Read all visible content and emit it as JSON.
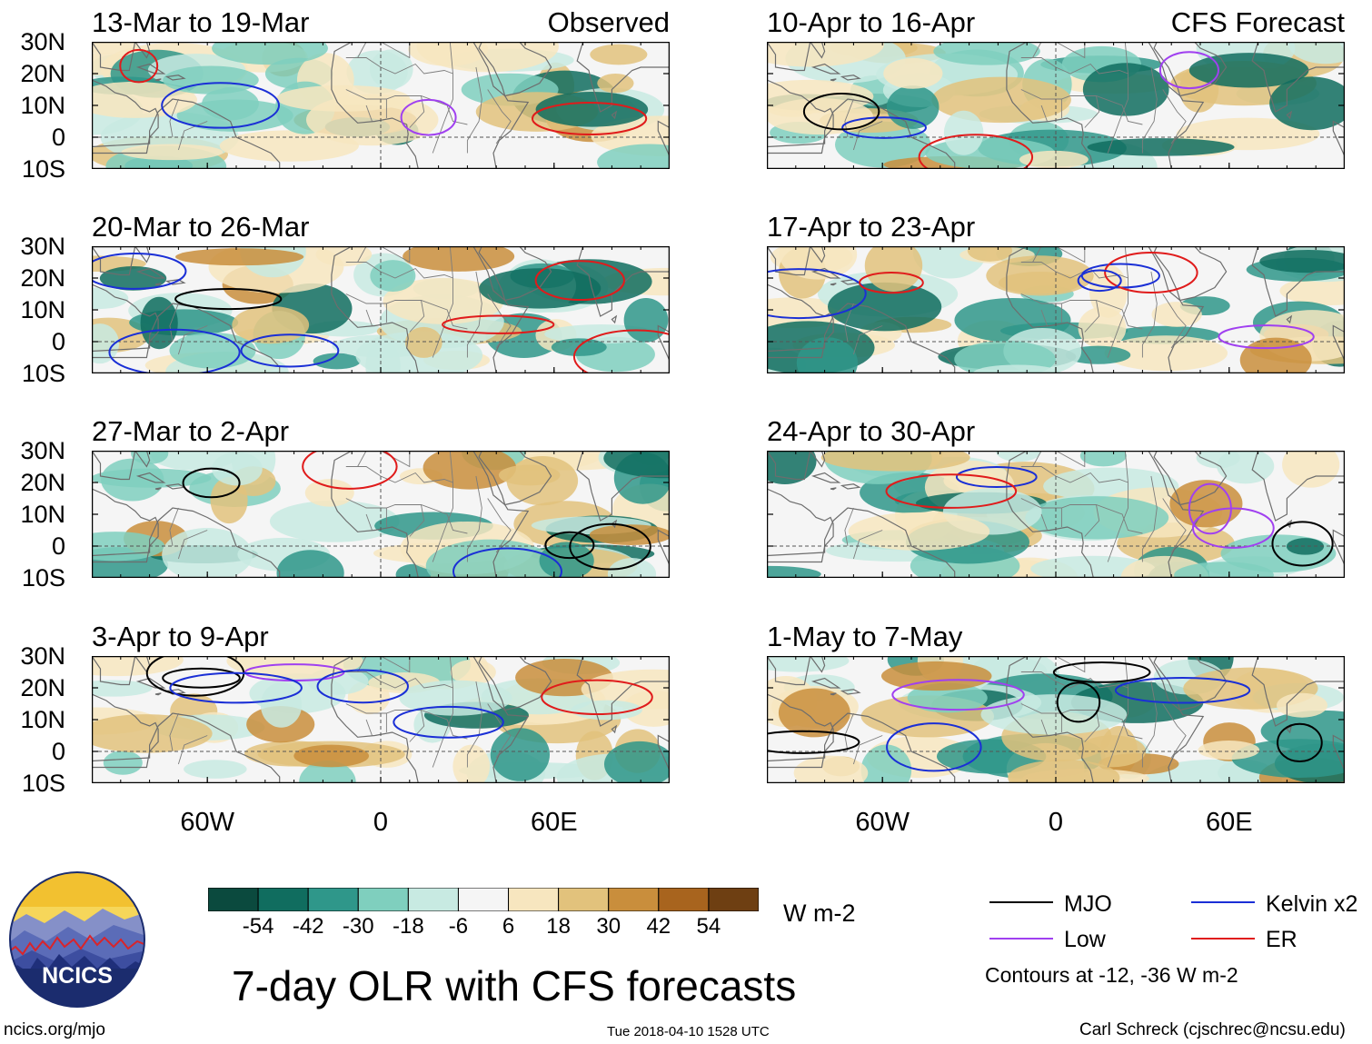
{
  "panels": [
    {
      "col": 0,
      "row": 0,
      "title": "13-Mar to 19-Mar",
      "tag": "Observed"
    },
    {
      "col": 0,
      "row": 1,
      "title": "20-Mar to 26-Mar",
      "tag": ""
    },
    {
      "col": 0,
      "row": 2,
      "title": "27-Mar to 2-Apr",
      "tag": ""
    },
    {
      "col": 0,
      "row": 3,
      "title": "3-Apr to 9-Apr",
      "tag": ""
    },
    {
      "col": 1,
      "row": 0,
      "title": "10-Apr to 16-Apr",
      "tag": "CFS Forecast"
    },
    {
      "col": 1,
      "row": 1,
      "title": "17-Apr to 23-Apr",
      "tag": ""
    },
    {
      "col": 1,
      "row": 2,
      "title": "24-Apr to 30-Apr",
      "tag": ""
    },
    {
      "col": 1,
      "row": 3,
      "title": "1-May to 7-May",
      "tag": ""
    }
  ],
  "lat_labels": [
    "30N",
    "20N",
    "10N",
    "0",
    "10S"
  ],
  "lon_labels": [
    "60W",
    "0",
    "60E"
  ],
  "colorbar": {
    "colors": [
      "#0b4a3e",
      "#106d5f",
      "#2f978a",
      "#7fcfbe",
      "#c8eae2",
      "#f5f5f5",
      "#f7e6bf",
      "#e2c27c",
      "#c98e3c",
      "#a8641e",
      "#6e3f12"
    ],
    "labels": [
      "-54",
      "-42",
      "-30",
      "-18",
      "-6",
      "6",
      "18",
      "30",
      "42",
      "54"
    ],
    "unit": "W m-2"
  },
  "legend": {
    "items": [
      {
        "label": "MJO",
        "color": "#000000"
      },
      {
        "label": "Kelvin x2",
        "color": "#1a2fd6"
      },
      {
        "label": "Low",
        "color": "#a040f0"
      },
      {
        "label": "ER",
        "color": "#e01b1b"
      }
    ],
    "note": "Contours at -12, -36 W m-2"
  },
  "logo": {
    "text": "NCICS"
  },
  "main_title": "7-day OLR with CFS forecasts",
  "footer": {
    "url": "ncics.org/mjo",
    "timestamp": "Tue 2018-04-10 1528 UTC",
    "credit": "Carl Schreck (cjschrec@ncsu.edu)"
  }
}
